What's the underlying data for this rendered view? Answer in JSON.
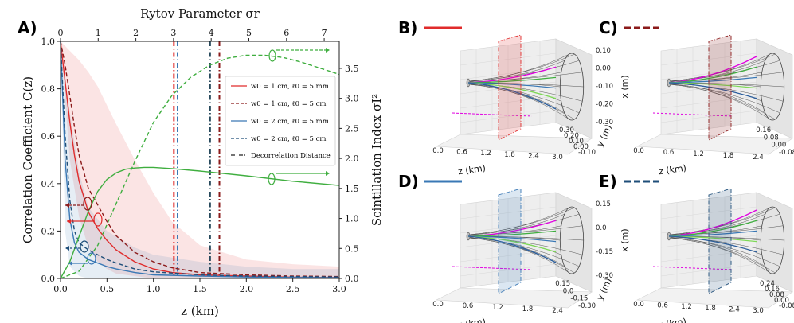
{
  "panels": {
    "A": "A)",
    "B": "B)",
    "C": "C)",
    "D": "D)",
    "E": "E)"
  },
  "colors": {
    "red": "#e02b2b",
    "darkred": "#8b1a1a",
    "blue": "#3a78b5",
    "darkblue": "#1f4e79",
    "green": "#3fae3f",
    "magenta": "#e000e0",
    "teal": "#27495c"
  },
  "chart_data": [
    {
      "type": "line",
      "title": "",
      "xlabel": "z (km)",
      "ylabel": "Correlation Coefficient C(z)",
      "y2label": "Scintillation Index σI²",
      "topxlabel": "Rytov Parameter σr",
      "xlim": [
        0,
        3.0
      ],
      "ylim": [
        0,
        1.0
      ],
      "y2lim": [
        0,
        3.95
      ],
      "toplim": [
        0,
        7.4
      ],
      "xticks": [
        "0.0",
        "0.5",
        "1.0",
        "1.5",
        "2.0",
        "2.5",
        "3.0"
      ],
      "yticks": [
        "0.0",
        "0.2",
        "0.4",
        "0.6",
        "0.8",
        "1.0"
      ],
      "y2ticks": [
        "0.0",
        "0.5",
        "1.0",
        "1.5",
        "2.0",
        "2.5",
        "3.0",
        "3.5"
      ],
      "topticks": [
        "0",
        "1",
        "2",
        "3",
        "4",
        "5",
        "6",
        "7"
      ],
      "legend": [
        {
          "label": "w0 = 1 cm, ℓ0 = 5 mm",
          "style": "solid",
          "color": "#e02b2b"
        },
        {
          "label": "w0 = 1 cm, ℓ0 = 5 cm",
          "style": "dashed",
          "color": "#8b1a1a"
        },
        {
          "label": "w0 = 2 cm, ℓ0 = 5 mm",
          "style": "solid",
          "color": "#3a78b5"
        },
        {
          "label": "w0 = 2 cm, ℓ0 = 5 cm",
          "style": "dashed",
          "color": "#1f4e79"
        },
        {
          "label": "Decorrelation Distance",
          "style": "dashdot",
          "color": "#222222"
        }
      ],
      "series": [
        {
          "name": "C(z) w0=1cm l0=5mm",
          "color": "#e02b2b",
          "dash": "",
          "x": [
            0,
            0.05,
            0.1,
            0.15,
            0.2,
            0.3,
            0.4,
            0.5,
            0.6,
            0.8,
            1.0,
            1.2,
            1.5,
            2.0,
            2.5,
            3.0
          ],
          "y": [
            1.0,
            0.83,
            0.66,
            0.52,
            0.41,
            0.28,
            0.21,
            0.16,
            0.12,
            0.07,
            0.04,
            0.025,
            0.015,
            0.01,
            0.005,
            0.004
          ]
        },
        {
          "name": "C(z) w0=1cm l0=5cm",
          "color": "#8b1a1a",
          "dash": "5,3",
          "x": [
            0,
            0.05,
            0.1,
            0.15,
            0.2,
            0.3,
            0.4,
            0.5,
            0.6,
            0.8,
            1.0,
            1.2,
            1.5,
            2.0,
            2.5,
            3.0
          ],
          "y": [
            1.0,
            0.9,
            0.77,
            0.64,
            0.52,
            0.38,
            0.31,
            0.24,
            0.18,
            0.11,
            0.07,
            0.045,
            0.025,
            0.015,
            0.01,
            0.008
          ]
        },
        {
          "name": "C(z) w0=2cm l0=5mm",
          "color": "#3a78b5",
          "dash": "",
          "x": [
            0,
            0.05,
            0.1,
            0.15,
            0.2,
            0.3,
            0.4,
            0.5,
            0.6,
            0.8,
            1.0,
            1.5,
            2.0,
            2.5,
            3.0
          ],
          "y": [
            1.0,
            0.5,
            0.25,
            0.15,
            0.11,
            0.08,
            0.065,
            0.05,
            0.04,
            0.025,
            0.015,
            0.01,
            0.006,
            0.004,
            0.003
          ]
        },
        {
          "name": "C(z) w0=2cm l0=5cm",
          "color": "#1f4e79",
          "dash": "5,3",
          "x": [
            0,
            0.05,
            0.1,
            0.15,
            0.2,
            0.3,
            0.4,
            0.5,
            0.6,
            0.8,
            1.0,
            1.5,
            2.0,
            2.5,
            3.0
          ],
          "y": [
            1.0,
            0.6,
            0.33,
            0.2,
            0.15,
            0.12,
            0.1,
            0.08,
            0.065,
            0.04,
            0.028,
            0.015,
            0.01,
            0.008,
            0.006
          ]
        },
        {
          "name": "σI² solid (w0=2cm)",
          "color": "#3fae3f",
          "dash": "",
          "axis": "y2",
          "x": [
            0,
            0.1,
            0.2,
            0.3,
            0.4,
            0.5,
            0.6,
            0.7,
            0.8,
            0.9,
            1.0,
            1.2,
            1.5,
            2.0,
            2.5,
            3.0
          ],
          "y": [
            0.0,
            0.28,
            0.7,
            1.12,
            1.45,
            1.65,
            1.76,
            1.82,
            1.84,
            1.85,
            1.85,
            1.83,
            1.79,
            1.71,
            1.62,
            1.55
          ]
        },
        {
          "name": "σI² dashed (w0=1cm)",
          "color": "#3fae3f",
          "dash": "5,3",
          "axis": "y2",
          "x": [
            0,
            0.2,
            0.4,
            0.6,
            0.8,
            1.0,
            1.2,
            1.4,
            1.6,
            1.8,
            2.0,
            2.2,
            2.4,
            2.6,
            2.8,
            3.0
          ],
          "y": [
            0.0,
            0.12,
            0.55,
            1.25,
            1.95,
            2.6,
            3.05,
            3.35,
            3.55,
            3.67,
            3.72,
            3.72,
            3.68,
            3.6,
            3.5,
            3.4
          ]
        }
      ],
      "bands": [
        {
          "color": "#e02b2b",
          "opacity": 0.13,
          "x": [
            0,
            0.1,
            0.2,
            0.3,
            0.4,
            0.5,
            0.6,
            0.8,
            1.0,
            1.2,
            1.5,
            2.0,
            2.5,
            3.0
          ],
          "upper": [
            1.0,
            0.96,
            0.92,
            0.87,
            0.81,
            0.73,
            0.65,
            0.5,
            0.36,
            0.24,
            0.14,
            0.08,
            0.06,
            0.05
          ],
          "lower": [
            1.0,
            0.5,
            0.26,
            0.13,
            0.07,
            0.04,
            0.02,
            0.01,
            0.0,
            0.0,
            0.0,
            0.0,
            0.0,
            0.0
          ]
        },
        {
          "color": "#3a78b5",
          "opacity": 0.13,
          "x": [
            0,
            0.05,
            0.1,
            0.2,
            0.3,
            0.5,
            0.8,
            1.0,
            1.5,
            2.0,
            2.5,
            3.0
          ],
          "upper": [
            1.0,
            0.85,
            0.7,
            0.45,
            0.3,
            0.2,
            0.13,
            0.1,
            0.07,
            0.05,
            0.04,
            0.04
          ],
          "lower": [
            1.0,
            0.2,
            0.05,
            0.01,
            0.0,
            0.0,
            0.0,
            0.0,
            0.0,
            0.0,
            0.0,
            0.0
          ]
        }
      ],
      "decorrelation_distances_km": [
        {
          "z": 1.22,
          "color": "#e02b2b"
        },
        {
          "z": 1.26,
          "color": "#3a78b5"
        },
        {
          "z": 1.61,
          "color": "#27495c"
        },
        {
          "z": 1.71,
          "color": "#8b1a1a"
        }
      ]
    },
    {
      "type": "3d-beam",
      "panel": "B)",
      "legend_color": "#e02b2b",
      "legend_style": "solid",
      "xlabel": "z (km)",
      "ylabel": "y (m)",
      "zlabel": "x (m)",
      "xticks": [
        "0.0",
        "0.6",
        "1.2",
        "1.8",
        "2.4",
        "3.0"
      ],
      "yticks": [
        "-0.10",
        "0.00",
        "0.10",
        "0.20",
        "0.30"
      ],
      "zticks": [
        "0.10",
        "0.00",
        "-0.10",
        "-0.20",
        "-0.30"
      ]
    },
    {
      "type": "3d-beam",
      "panel": "C)",
      "legend_color": "#8b1a1a",
      "legend_style": "dashed",
      "xlabel": "z (km)",
      "ylabel": "y (m)",
      "zlabel": "x (m)",
      "xticks": [
        "0.0",
        "0.6",
        "1.2",
        "1.8",
        "2.4"
      ],
      "yticks": [
        "-0.08",
        "0.00",
        "0.08",
        "0.16"
      ],
      "zticks": [
        "0.18",
        "0.12",
        "0.06",
        "0.00",
        "-0.06"
      ]
    },
    {
      "type": "3d-beam",
      "panel": "D)",
      "legend_color": "#3a78b5",
      "legend_style": "solid",
      "xlabel": "z (km)",
      "ylabel": "y (m)",
      "zlabel": "x (m)",
      "xticks": [
        "0.0",
        "0.6",
        "1.2",
        "1.8",
        "2.4"
      ],
      "yticks": [
        "-0.30",
        "-0.15",
        "0.0",
        "0.15"
      ],
      "zticks": [
        "0.15",
        "0.0",
        "-0.15",
        "-0.30"
      ]
    },
    {
      "type": "3d-beam",
      "panel": "E)",
      "legend_color": "#1f4e79",
      "legend_style": "dashed",
      "xlabel": "z (km)",
      "ylabel": "y (m)",
      "zlabel": "x (m)",
      "xticks": [
        "0.0",
        "0.6",
        "1.2",
        "1.8",
        "2.4",
        "3.0"
      ],
      "yticks": [
        "-0.08",
        "0.00",
        "0.08",
        "0.16",
        "0.24"
      ],
      "zticks": [
        "0.08",
        "0.00",
        "-0.08",
        "-0.16"
      ]
    }
  ]
}
